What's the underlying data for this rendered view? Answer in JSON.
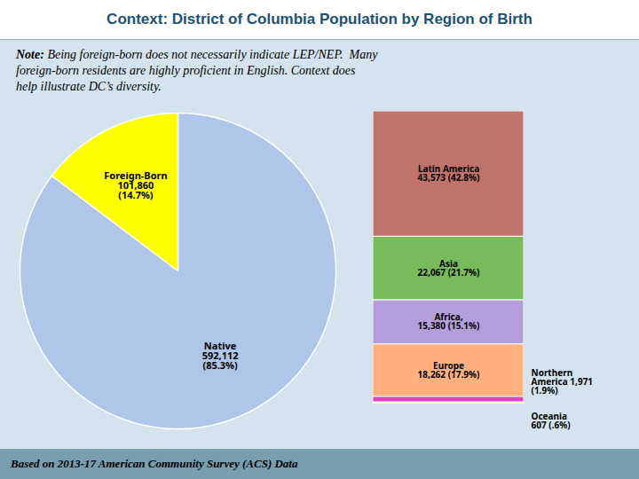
{
  "chart_data": [
    {
      "type": "pie",
      "title": "Context: District of Columbia Population by Region of Birth",
      "annotations": [
        {
          "label": "Note:",
          "text": " Being foreign-born does not necessarily indicate LEP/NEP.  Many\nforeign-born residents are highly proficient in English. Context does\nhelp illustrate DC’s diversity."
        }
      ],
      "values": [
        85.3,
        14.7
      ],
      "value_labels": [
        "Native\n592,112\n(85.3%)",
        "Foreign-Born\n101,860\n(14.7%)"
      ],
      "colors": [
        "#aec6e8",
        "#ffff00"
      ],
      "data_labels": true
    },
    {
      "type": "bar",
      "stacked": true,
      "values": [
        42.8,
        21.7,
        15.1,
        17.9,
        1.9,
        0.6
      ],
      "value_labels": [
        "Latin America\n43,573 (42.8%)",
        "Asia\n22,067 (21.7%)",
        "Africa,\n15,380 (15.1%)",
        "Europe\n18,262 (17.9%)",
        "Northern\nAmerica 1,971\n(1.9%)",
        "Oceania\n607 (.6%)"
      ],
      "colors": [
        "#c0736a",
        "#77bb5b",
        "#b39ddb",
        "#ffb07c",
        "#dd44bb",
        "#ffff99"
      ],
      "ylim": [
        0,
        100
      ],
      "tick_labels": false,
      "data_labels": true,
      "caption": "Based on 2013-17 American Community Survey (ACS) Data"
    }
  ]
}
